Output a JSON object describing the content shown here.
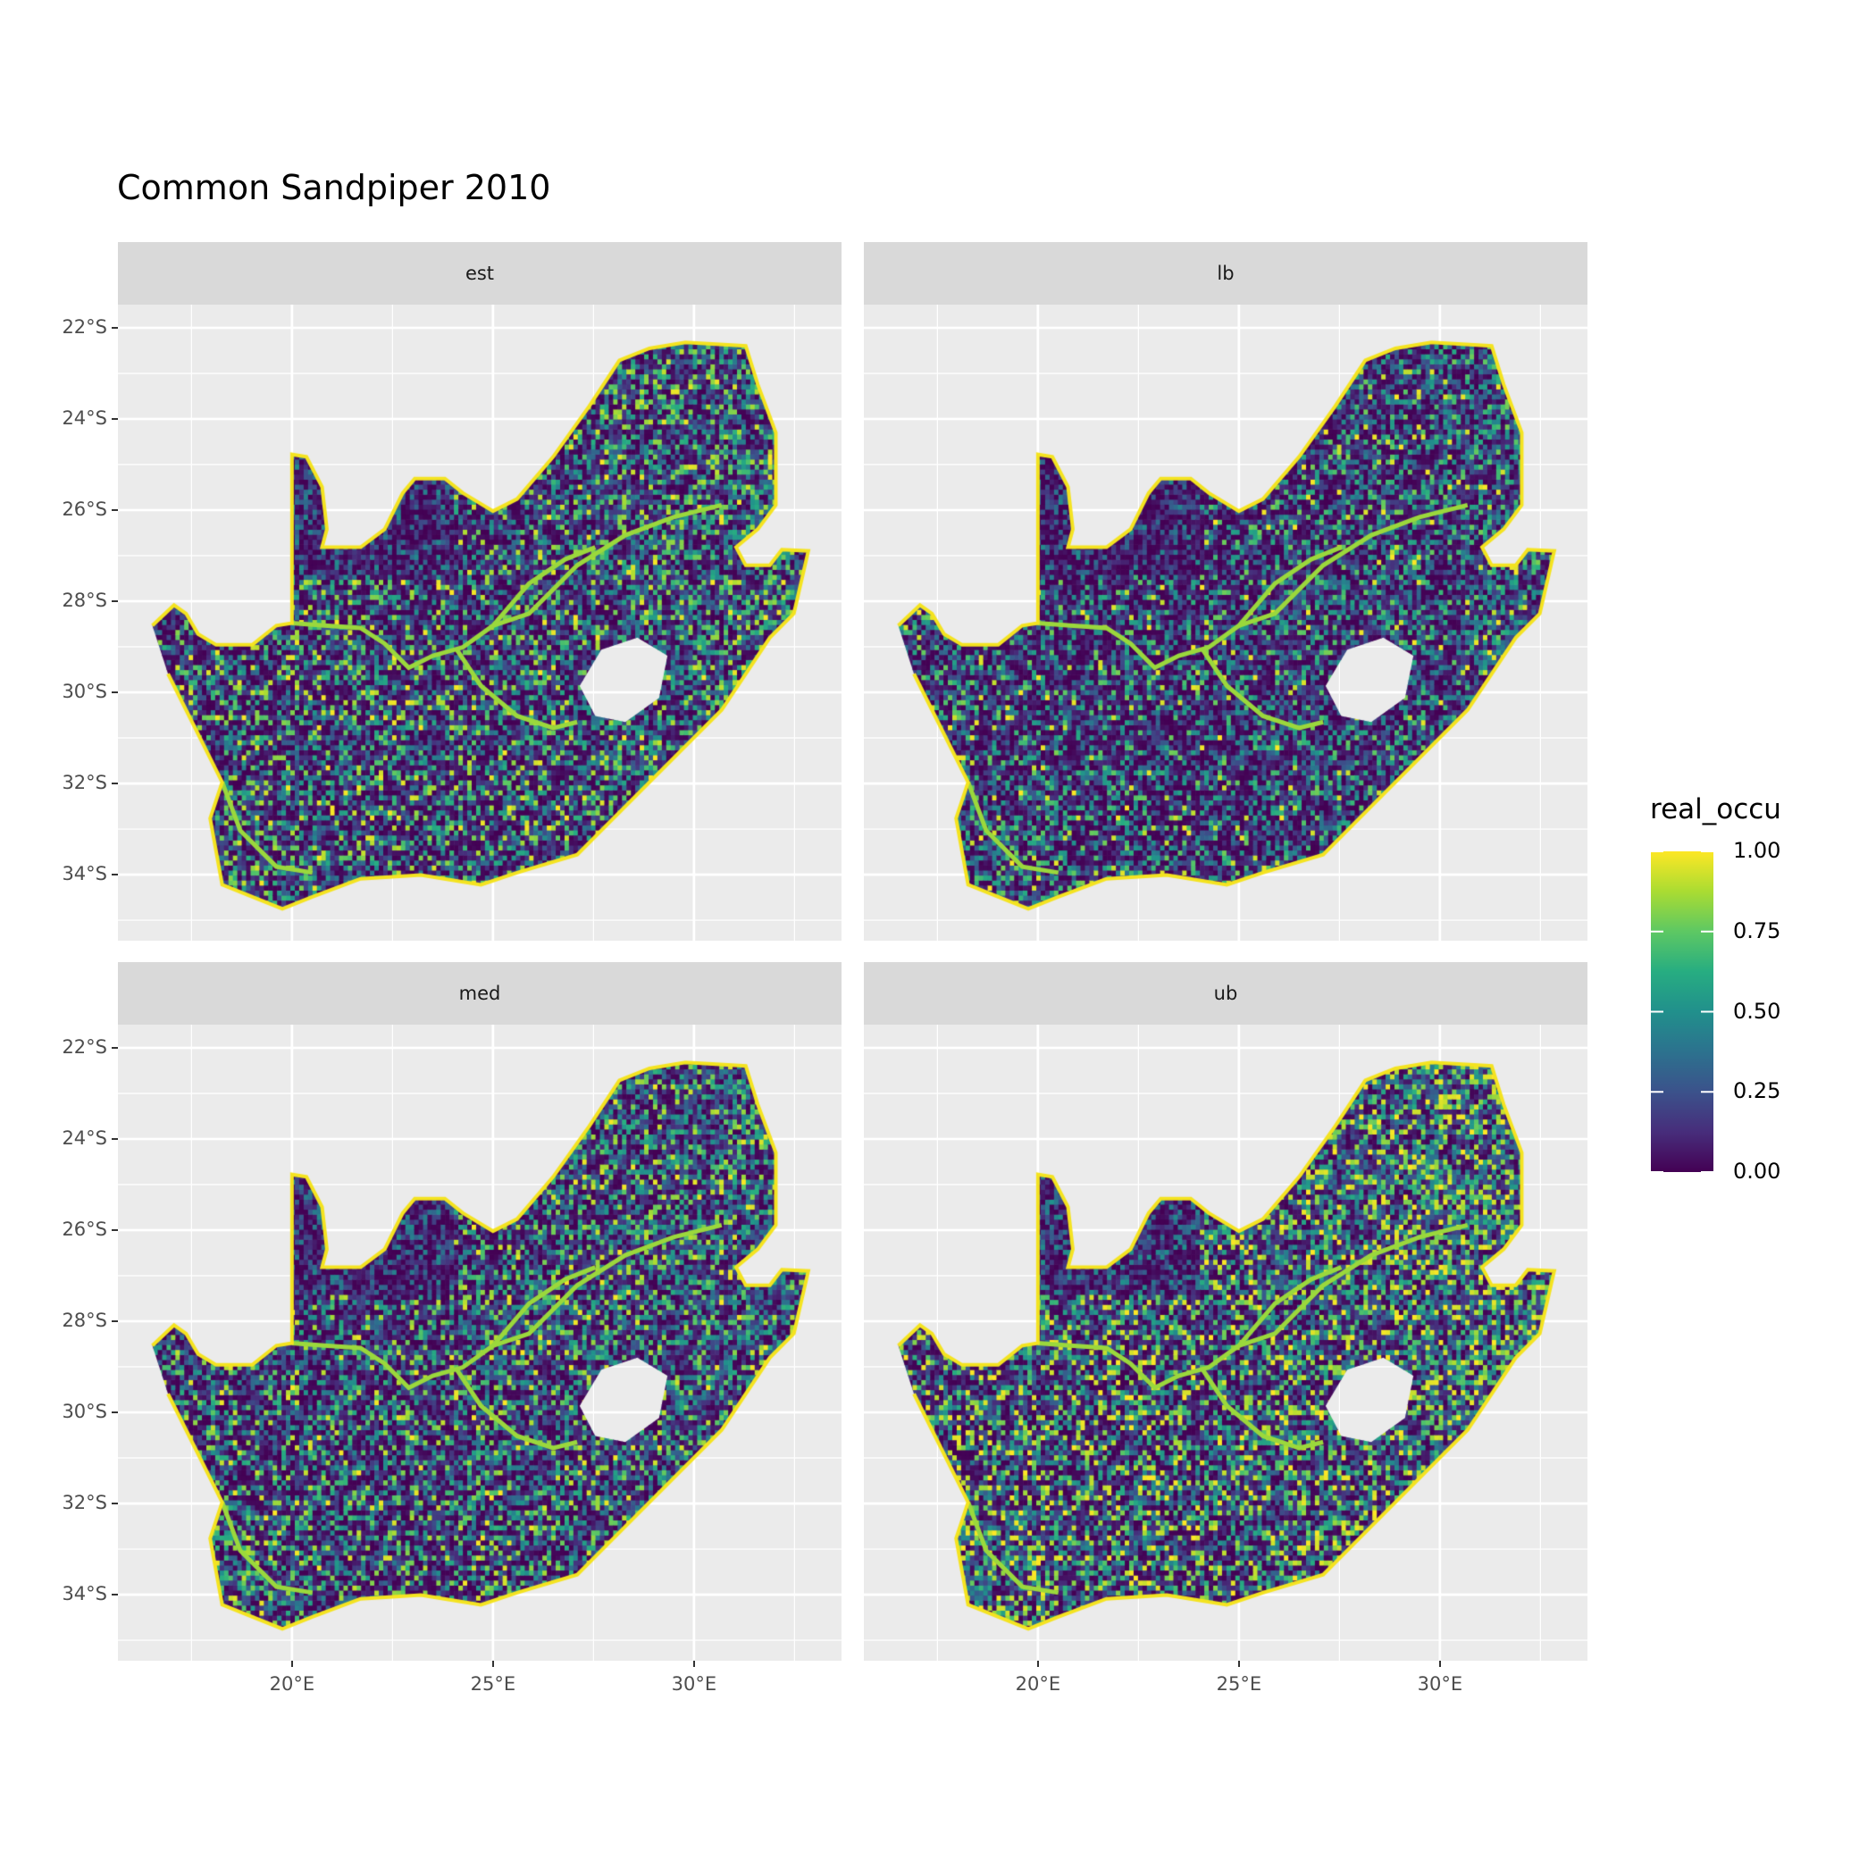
{
  "title": "Common Sandpiper 2010",
  "chart_data": {
    "type": "heatmap",
    "title": "Common Sandpiper 2010",
    "xlabel": "",
    "ylabel": "",
    "facets": [
      "est",
      "lb",
      "med",
      "ub"
    ],
    "x_ticks": [
      "20°E",
      "25°E",
      "30°E"
    ],
    "x_tick_values": [
      20,
      25,
      30
    ],
    "y_ticks": [
      "22°S",
      "24°S",
      "26°S",
      "28°S",
      "30°S",
      "32°S",
      "34°S"
    ],
    "y_tick_values": [
      -22,
      -24,
      -26,
      -28,
      -30,
      -32,
      -34
    ],
    "xlim": [
      15.67,
      33.67
    ],
    "ylim": [
      -35.45,
      -21.49
    ],
    "grid": true,
    "region": "South Africa",
    "facet_mean_intensity": {
      "est": 0.3,
      "lb": 0.2,
      "med": 0.3,
      "ub": 0.42
    },
    "legend": {
      "title": "real_occu",
      "placement": "right",
      "palette": "viridis",
      "range": [
        0,
        1
      ],
      "labels": [
        "1.00",
        "0.75",
        "0.50",
        "0.25",
        "0.00"
      ],
      "values": [
        1,
        0.75,
        0.5,
        0.25,
        0
      ]
    }
  },
  "colors": {
    "panel_bg": "#EBEBEB",
    "strip_bg": "#D9D9D9",
    "low": "#440154",
    "mid": "#21908C",
    "high": "#FDE725"
  }
}
